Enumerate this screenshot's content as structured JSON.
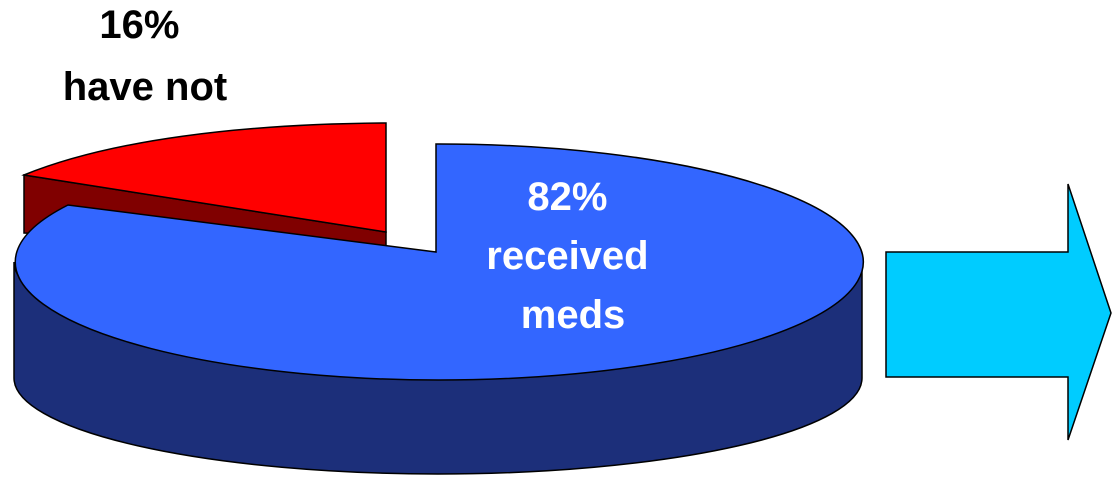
{
  "chart_data": {
    "type": "pie",
    "title": "",
    "slices": [
      {
        "value": 82,
        "label": [
          "82%",
          "received",
          "meds"
        ],
        "top_color": "#3366ff",
        "side_color": "#1c2f7a",
        "label_color": "#ffffff"
      },
      {
        "value": 16,
        "label": [
          "16%",
          "have not"
        ],
        "top_color": "#ff0000",
        "side_color": "#800000",
        "label_color": "#000000",
        "exploded": true
      }
    ],
    "three_d": true
  },
  "decorations": {
    "arrow": {
      "direction": "right",
      "fill": "#00ccff",
      "icon": "right-arrow-icon"
    }
  }
}
